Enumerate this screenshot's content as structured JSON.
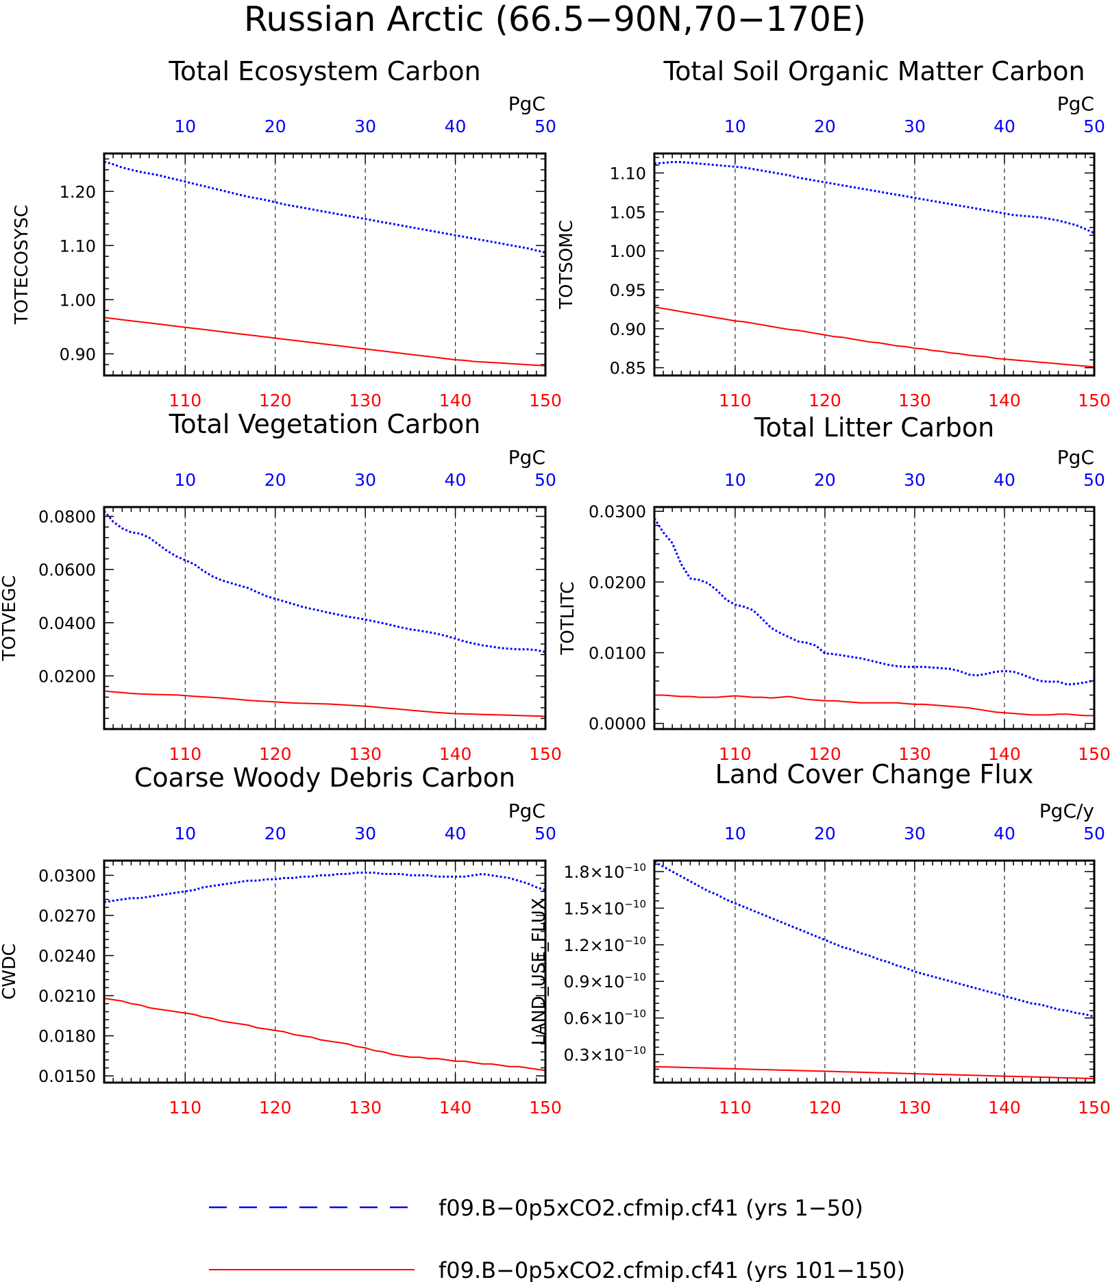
{
  "page_title": "Russian Arctic (66.5−90N,70−170E)",
  "colors": {
    "series_a": "#0000ff",
    "series_b": "#ff0000",
    "axis": "#000000",
    "grid": "#000000"
  },
  "legend": {
    "items": [
      {
        "label": "f09.B−0p5xCO2.cfmip.cf41 (yrs 1−50)",
        "style": "dashed",
        "color": "#0000ff"
      },
      {
        "label": "f09.B−0p5xCO2.cfmip.cf41 (yrs 101−150)",
        "style": "solid",
        "color": "#ff0000"
      }
    ]
  },
  "chart_data": [
    {
      "type": "line",
      "title": "Total Ecosystem Carbon",
      "units": "PgC",
      "ylabel": "TOTECOSYSC",
      "x_bottom": {
        "range": [
          101,
          150
        ],
        "ticks": [
          "110",
          "120",
          "130",
          "140",
          "150"
        ]
      },
      "x_top": {
        "range": [
          1,
          50
        ],
        "ticks": [
          "10",
          "20",
          "30",
          "40",
          "50"
        ]
      },
      "ylim": [
        0.86,
        1.27
      ],
      "yticks": [
        0.9,
        1.0,
        1.1,
        1.2
      ],
      "ytick_labels": [
        "0.90",
        "1.00",
        "1.10",
        "1.20"
      ],
      "series": [
        {
          "axis": "top",
          "style": "dotted",
          "color": "#0000ff",
          "values": [
            1.255,
            1.25,
            1.244,
            1.24,
            1.236,
            1.233,
            1.23,
            1.226,
            1.222,
            1.218,
            1.214,
            1.21,
            1.206,
            1.202,
            1.198,
            1.194,
            1.19,
            1.187,
            1.184,
            1.18,
            1.176,
            1.173,
            1.17,
            1.167,
            1.164,
            1.161,
            1.158,
            1.155,
            1.152,
            1.149,
            1.146,
            1.143,
            1.14,
            1.137,
            1.134,
            1.131,
            1.128,
            1.125,
            1.122,
            1.119,
            1.116,
            1.113,
            1.11,
            1.107,
            1.104,
            1.101,
            1.098,
            1.095,
            1.091,
            1.087
          ]
        },
        {
          "axis": "bottom",
          "style": "solid",
          "color": "#ff0000",
          "values": [
            0.967,
            0.965,
            0.963,
            0.961,
            0.959,
            0.957,
            0.955,
            0.953,
            0.951,
            0.949,
            0.947,
            0.945,
            0.943,
            0.941,
            0.939,
            0.937,
            0.935,
            0.933,
            0.931,
            0.929,
            0.927,
            0.925,
            0.923,
            0.921,
            0.919,
            0.917,
            0.915,
            0.913,
            0.911,
            0.909,
            0.907,
            0.905,
            0.903,
            0.901,
            0.899,
            0.897,
            0.895,
            0.893,
            0.891,
            0.889,
            0.888,
            0.886,
            0.885,
            0.884,
            0.883,
            0.882,
            0.881,
            0.88,
            0.879,
            0.878
          ]
        }
      ]
    },
    {
      "type": "line",
      "title": "Total Soil Organic Matter Carbon",
      "units": "PgC",
      "ylabel": "TOTSOMC",
      "x_bottom": {
        "range": [
          101,
          150
        ],
        "ticks": [
          "110",
          "120",
          "130",
          "140",
          "150"
        ]
      },
      "x_top": {
        "range": [
          1,
          50
        ],
        "ticks": [
          "10",
          "20",
          "30",
          "40",
          "50"
        ]
      },
      "ylim": [
        0.84,
        1.125
      ],
      "yticks": [
        0.85,
        0.9,
        0.95,
        1.0,
        1.05,
        1.1
      ],
      "ytick_labels": [
        "0.85",
        "0.90",
        "0.95",
        "1.00",
        "1.05",
        "1.10"
      ],
      "series": [
        {
          "axis": "top",
          "style": "dotted",
          "color": "#0000ff",
          "values": [
            1.112,
            1.113,
            1.114,
            1.114,
            1.113,
            1.112,
            1.111,
            1.11,
            1.109,
            1.108,
            1.107,
            1.105,
            1.103,
            1.101,
            1.099,
            1.097,
            1.094,
            1.092,
            1.09,
            1.088,
            1.086,
            1.084,
            1.082,
            1.08,
            1.078,
            1.076,
            1.074,
            1.072,
            1.07,
            1.068,
            1.066,
            1.064,
            1.062,
            1.06,
            1.058,
            1.056,
            1.054,
            1.052,
            1.05,
            1.048,
            1.046,
            1.045,
            1.044,
            1.043,
            1.041,
            1.039,
            1.036,
            1.033,
            1.028,
            1.023
          ]
        },
        {
          "axis": "bottom",
          "style": "solid",
          "color": "#ff0000",
          "values": [
            0.928,
            0.926,
            0.924,
            0.922,
            0.92,
            0.918,
            0.916,
            0.914,
            0.912,
            0.91,
            0.909,
            0.907,
            0.905,
            0.903,
            0.901,
            0.899,
            0.898,
            0.896,
            0.894,
            0.892,
            0.89,
            0.889,
            0.887,
            0.885,
            0.883,
            0.882,
            0.88,
            0.878,
            0.877,
            0.875,
            0.874,
            0.872,
            0.871,
            0.869,
            0.868,
            0.866,
            0.865,
            0.864,
            0.862,
            0.861,
            0.86,
            0.859,
            0.858,
            0.857,
            0.856,
            0.855,
            0.854,
            0.853,
            0.852,
            0.851
          ]
        }
      ]
    },
    {
      "type": "line",
      "title": "Total Vegetation Carbon",
      "units": "PgC",
      "ylabel": "TOTVEGC",
      "x_bottom": {
        "range": [
          101,
          150
        ],
        "ticks": [
          "110",
          "120",
          "130",
          "140",
          "150"
        ]
      },
      "x_top": {
        "range": [
          1,
          50
        ],
        "ticks": [
          "10",
          "20",
          "30",
          "40",
          "50"
        ]
      },
      "ylim": [
        0.0,
        0.0835
      ],
      "yticks": [
        0.02,
        0.04,
        0.06,
        0.08
      ],
      "ytick_labels": [
        "0.0200",
        "0.0400",
        "0.0600",
        "0.0800"
      ],
      "series": [
        {
          "axis": "top",
          "style": "dotted",
          "color": "#0000ff",
          "values": [
            0.082,
            0.078,
            0.0755,
            0.074,
            0.0735,
            0.072,
            0.0695,
            0.067,
            0.065,
            0.0635,
            0.062,
            0.0595,
            0.0575,
            0.056,
            0.055,
            0.054,
            0.053,
            0.0515,
            0.05,
            0.049,
            0.048,
            0.047,
            0.046,
            0.0452,
            0.0445,
            0.0437,
            0.043,
            0.0423,
            0.0418,
            0.0412,
            0.0405,
            0.0398,
            0.039,
            0.0382,
            0.0375,
            0.037,
            0.0365,
            0.0358,
            0.035,
            0.034,
            0.033,
            0.0322,
            0.0315,
            0.031,
            0.0305,
            0.0302,
            0.03,
            0.03,
            0.0297,
            0.029
          ]
        },
        {
          "axis": "bottom",
          "style": "solid",
          "color": "#ff0000",
          "values": [
            0.0143,
            0.014,
            0.0137,
            0.0134,
            0.0132,
            0.0131,
            0.013,
            0.0129,
            0.0128,
            0.0126,
            0.0123,
            0.0121,
            0.0119,
            0.0117,
            0.0114,
            0.0111,
            0.0108,
            0.0106,
            0.0104,
            0.0102,
            0.01,
            0.0098,
            0.0097,
            0.0096,
            0.0095,
            0.0094,
            0.0092,
            0.009,
            0.0088,
            0.0086,
            0.0083,
            0.008,
            0.0077,
            0.0074,
            0.0071,
            0.0068,
            0.0065,
            0.0062,
            0.006,
            0.0058,
            0.0057,
            0.0056,
            0.0055,
            0.0054,
            0.0053,
            0.0052,
            0.0051,
            0.005,
            0.0049,
            0.0048
          ]
        }
      ]
    },
    {
      "type": "line",
      "title": "Total Litter Carbon",
      "units": "PgC",
      "ylabel": "TOTLITC",
      "x_bottom": {
        "range": [
          101,
          150
        ],
        "ticks": [
          "110",
          "120",
          "130",
          "140",
          "150"
        ]
      },
      "x_top": {
        "range": [
          1,
          50
        ],
        "ticks": [
          "10",
          "20",
          "30",
          "40",
          "50"
        ]
      },
      "ylim": [
        -0.0008,
        0.0306
      ],
      "yticks": [
        0.0,
        0.01,
        0.02,
        0.03
      ],
      "ytick_labels": [
        "0.0000",
        "0.0100",
        "0.0200",
        "0.0300"
      ],
      "series": [
        {
          "axis": "top",
          "style": "dotted",
          "color": "#0000ff",
          "values": [
            0.029,
            0.027,
            0.0255,
            0.0225,
            0.0205,
            0.0203,
            0.0198,
            0.0188,
            0.0175,
            0.0168,
            0.0165,
            0.016,
            0.0148,
            0.0135,
            0.0128,
            0.0122,
            0.0116,
            0.0114,
            0.011,
            0.0099,
            0.0098,
            0.0096,
            0.0094,
            0.0092,
            0.0089,
            0.0086,
            0.0083,
            0.0081,
            0.008,
            0.008,
            0.008,
            0.0079,
            0.0078,
            0.0077,
            0.0074,
            0.0069,
            0.0068,
            0.007,
            0.0073,
            0.0074,
            0.0073,
            0.0069,
            0.0064,
            0.006,
            0.0059,
            0.0059,
            0.0055,
            0.0056,
            0.0058,
            0.0061
          ]
        },
        {
          "axis": "bottom",
          "style": "solid",
          "color": "#ff0000",
          "values": [
            0.004,
            0.004,
            0.0039,
            0.0038,
            0.0038,
            0.0037,
            0.0037,
            0.0037,
            0.0038,
            0.0039,
            0.0038,
            0.0037,
            0.0037,
            0.0036,
            0.0037,
            0.0038,
            0.0036,
            0.0034,
            0.0033,
            0.0032,
            0.0032,
            0.0031,
            0.003,
            0.0029,
            0.0029,
            0.0029,
            0.0029,
            0.0029,
            0.0028,
            0.0027,
            0.0027,
            0.0026,
            0.0025,
            0.0024,
            0.0023,
            0.0022,
            0.002,
            0.0018,
            0.0016,
            0.0015,
            0.0014,
            0.0013,
            0.0012,
            0.0012,
            0.0012,
            0.0013,
            0.0013,
            0.0012,
            0.0011,
            0.0011
          ]
        }
      ]
    },
    {
      "type": "line",
      "title": "Coarse Woody Debris Carbon",
      "units": "PgC",
      "ylabel": "CWDC",
      "x_bottom": {
        "range": [
          101,
          150
        ],
        "ticks": [
          "110",
          "120",
          "130",
          "140",
          "150"
        ]
      },
      "x_top": {
        "range": [
          1,
          50
        ],
        "ticks": [
          "10",
          "20",
          "30",
          "40",
          "50"
        ]
      },
      "ylim": [
        0.0145,
        0.0311
      ],
      "yticks": [
        0.015,
        0.018,
        0.021,
        0.024,
        0.027,
        0.03
      ],
      "ytick_labels": [
        "0.0150",
        "0.0180",
        "0.0210",
        "0.0240",
        "0.0270",
        "0.0300"
      ],
      "series": [
        {
          "axis": "top",
          "style": "dotted",
          "color": "#0000ff",
          "values": [
            0.028,
            0.0281,
            0.0282,
            0.0283,
            0.0283,
            0.0284,
            0.0285,
            0.0286,
            0.0287,
            0.0288,
            0.0289,
            0.0291,
            0.0292,
            0.0293,
            0.0294,
            0.0295,
            0.0296,
            0.0296,
            0.0297,
            0.0297,
            0.0298,
            0.0298,
            0.0299,
            0.0299,
            0.03,
            0.03,
            0.0301,
            0.0301,
            0.0302,
            0.0302,
            0.0302,
            0.0301,
            0.0301,
            0.0301,
            0.03,
            0.03,
            0.03,
            0.0299,
            0.0299,
            0.0299,
            0.0299,
            0.03,
            0.0301,
            0.03,
            0.0299,
            0.0298,
            0.0296,
            0.0294,
            0.0291,
            0.0289
          ]
        },
        {
          "axis": "bottom",
          "style": "solid",
          "color": "#ff0000",
          "values": [
            0.0208,
            0.0207,
            0.0206,
            0.0204,
            0.0203,
            0.0201,
            0.02,
            0.0199,
            0.0198,
            0.0197,
            0.0196,
            0.0194,
            0.0193,
            0.0191,
            0.019,
            0.0189,
            0.0188,
            0.0186,
            0.0185,
            0.0184,
            0.0183,
            0.0181,
            0.018,
            0.0179,
            0.0177,
            0.0176,
            0.0175,
            0.0174,
            0.0172,
            0.0171,
            0.0169,
            0.0168,
            0.0166,
            0.0165,
            0.0164,
            0.0164,
            0.0163,
            0.0163,
            0.0162,
            0.0161,
            0.0161,
            0.016,
            0.0159,
            0.0159,
            0.0158,
            0.0157,
            0.0157,
            0.0156,
            0.0155,
            0.0154
          ]
        }
      ]
    },
    {
      "type": "line",
      "title": "Land Cover Change Flux",
      "units": "PgC/y",
      "ylabel": "LAND_USE_FLUX",
      "x_bottom": {
        "range": [
          101,
          150
        ],
        "ticks": [
          "110",
          "120",
          "130",
          "140",
          "150"
        ]
      },
      "x_top": {
        "range": [
          1,
          50
        ],
        "ticks": [
          "10",
          "20",
          "30",
          "40",
          "50"
        ]
      },
      "ylim": [
        7e-12,
        1.89e-10
      ],
      "yticks": [
        3e-11,
        6e-11,
        9e-11,
        1.2e-10,
        1.5e-10,
        1.8e-10
      ],
      "ytick_mantissa": [
        "0.3",
        "0.6",
        "0.9",
        "1.2",
        "1.5",
        "1.8"
      ],
      "ytick_base": "×10",
      "ytick_exp": "−10",
      "series": [
        {
          "axis": "top",
          "style": "dotted",
          "color": "#0000ff",
          "values": [
            1.88e-10,
            1.84e-10,
            1.8e-10,
            1.76e-10,
            1.72e-10,
            1.68e-10,
            1.64e-10,
            1.61e-10,
            1.57e-10,
            1.54e-10,
            1.51e-10,
            1.48e-10,
            1.45e-10,
            1.42e-10,
            1.39e-10,
            1.36e-10,
            1.33e-10,
            1.3e-10,
            1.27e-10,
            1.24e-10,
            1.21e-10,
            1.18e-10,
            1.16e-10,
            1.13e-10,
            1.11e-10,
            1.08e-10,
            1.06e-10,
            1.03e-10,
            1.01e-10,
            9.8e-11,
            9.6e-11,
            9.4e-11,
            9.2e-11,
            9e-11,
            8.8e-11,
            8.6e-11,
            8.4e-11,
            8.2e-11,
            8e-11,
            7.8e-11,
            7.6e-11,
            7.4e-11,
            7.2e-11,
            7.1e-11,
            6.9e-11,
            6.7e-11,
            6.6e-11,
            6.4e-11,
            6.3e-11,
            6.1e-11
          ]
        },
        {
          "axis": "bottom",
          "style": "solid",
          "color": "#ff0000",
          "values": [
            2e-11,
            1.99e-11,
            1.97e-11,
            1.95e-11,
            1.93e-11,
            1.91e-11,
            1.89e-11,
            1.87e-11,
            1.85e-11,
            1.83e-11,
            1.81e-11,
            1.79e-11,
            1.77e-11,
            1.75e-11,
            1.73e-11,
            1.71e-11,
            1.69e-11,
            1.67e-11,
            1.65e-11,
            1.63e-11,
            1.61e-11,
            1.59e-11,
            1.57e-11,
            1.55e-11,
            1.53e-11,
            1.51e-11,
            1.49e-11,
            1.47e-11,
            1.45e-11,
            1.43e-11,
            1.41e-11,
            1.39e-11,
            1.37e-11,
            1.35e-11,
            1.33e-11,
            1.31e-11,
            1.29e-11,
            1.27e-11,
            1.25e-11,
            1.23e-11,
            1.21e-11,
            1.19e-11,
            1.17e-11,
            1.15e-11,
            1.13e-11,
            1.11e-11,
            1.09e-11,
            1.07e-11,
            1.05e-11,
            1.03e-11
          ]
        }
      ]
    }
  ]
}
